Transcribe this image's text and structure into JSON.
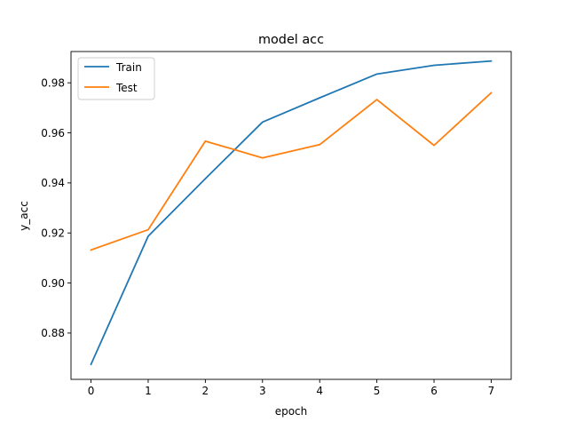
{
  "chart_data": {
    "type": "line",
    "title": "model acc",
    "xlabel": "epoch",
    "ylabel": "y_acc",
    "x": [
      0,
      1,
      2,
      3,
      4,
      5,
      6,
      7
    ],
    "xlim": [
      -0.35,
      7.35
    ],
    "ylim": [
      0.8615,
      0.9925
    ],
    "xticks": [
      "0",
      "1",
      "2",
      "3",
      "4",
      "5",
      "6",
      "7"
    ],
    "yticks": [
      "0.88",
      "0.90",
      "0.92",
      "0.94",
      "0.96",
      "0.98"
    ],
    "ytick_values": [
      0.88,
      0.9,
      0.92,
      0.94,
      0.96,
      0.98
    ],
    "grid": false,
    "legend_position": "upper-left",
    "series": [
      {
        "name": "Train",
        "color": "#1f77b4",
        "values": [
          0.8675,
          0.9187,
          0.9417,
          0.9643,
          0.974,
          0.9835,
          0.987,
          0.9887
        ]
      },
      {
        "name": "Test",
        "color": "#ff7f0e",
        "values": [
          0.9132,
          0.9213,
          0.9567,
          0.95,
          0.9553,
          0.9733,
          0.955,
          0.976
        ]
      }
    ]
  }
}
